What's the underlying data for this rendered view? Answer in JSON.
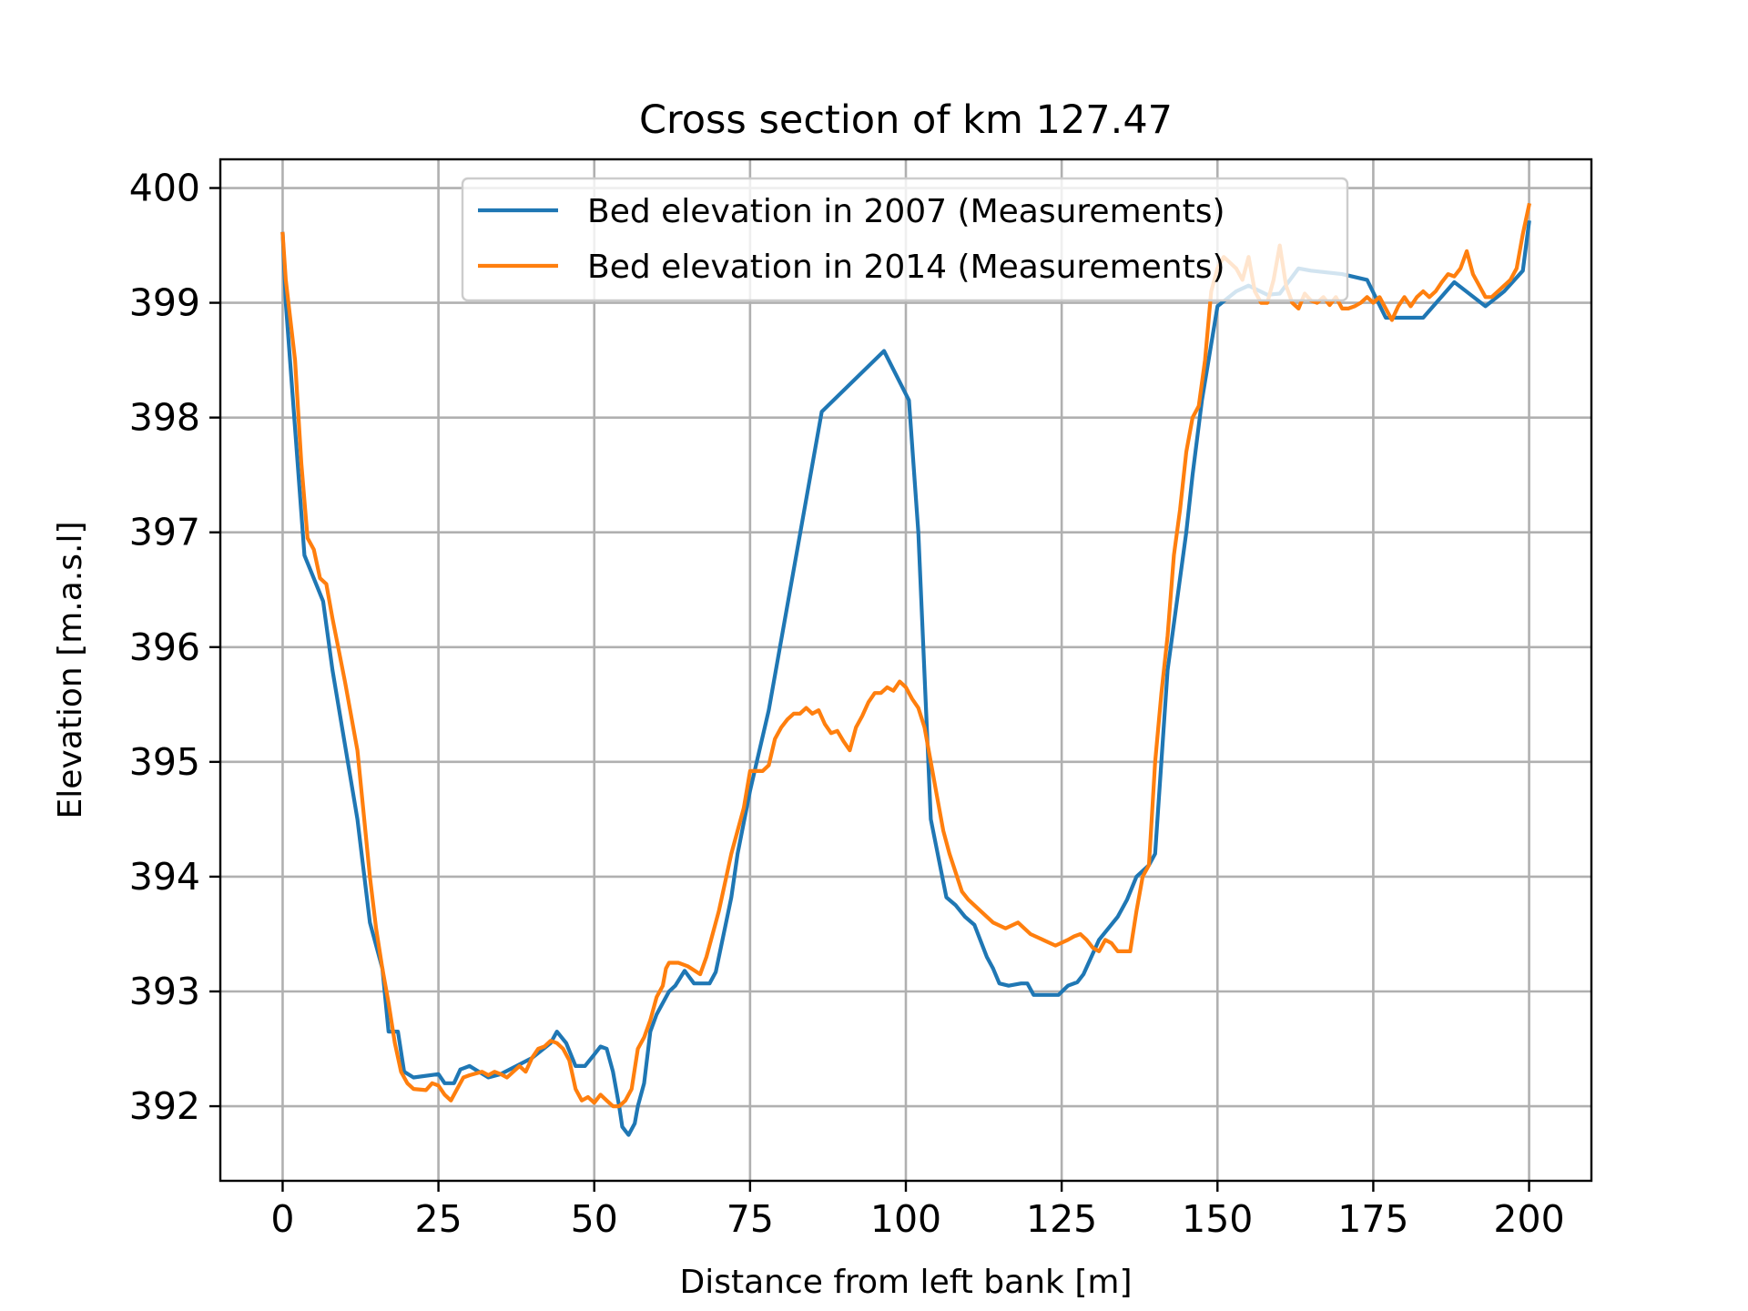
{
  "chart_data": {
    "type": "line",
    "title": "Cross section of km 127.47",
    "xlabel": "Distance from left bank [m]",
    "ylabel": "Elevation [m.a.s.l]",
    "xlim": [
      -10,
      210
    ],
    "ylim": [
      391.35,
      400.25
    ],
    "xticks": [
      0,
      25,
      50,
      75,
      100,
      125,
      150,
      175,
      200
    ],
    "yticks": [
      392,
      393,
      394,
      395,
      396,
      397,
      398,
      399,
      400
    ],
    "grid": true,
    "legend_position": "top-center",
    "series": [
      {
        "name": "Bed elevation in 2007 (Measurements)",
        "color": "#1f77b4",
        "points": [
          [
            0,
            399.6
          ],
          [
            0.5,
            399.0
          ],
          [
            3.5,
            396.8
          ],
          [
            6.5,
            396.4
          ],
          [
            8,
            395.8
          ],
          [
            12,
            394.5
          ],
          [
            14,
            393.6
          ],
          [
            16,
            393.2
          ],
          [
            17,
            392.65
          ],
          [
            18.5,
            392.65
          ],
          [
            19.5,
            392.3
          ],
          [
            21,
            392.25
          ],
          [
            25,
            392.28
          ],
          [
            26,
            392.2
          ],
          [
            27.5,
            392.2
          ],
          [
            28.5,
            392.32
          ],
          [
            30,
            392.35
          ],
          [
            33,
            392.25
          ],
          [
            35,
            392.28
          ],
          [
            40,
            392.42
          ],
          [
            43,
            392.55
          ],
          [
            44,
            392.65
          ],
          [
            45.5,
            392.55
          ],
          [
            47,
            392.35
          ],
          [
            48.5,
            392.35
          ],
          [
            50,
            392.45
          ],
          [
            51,
            392.52
          ],
          [
            52,
            392.5
          ],
          [
            53,
            392.3
          ],
          [
            54,
            392.0
          ],
          [
            54.5,
            391.82
          ],
          [
            55.5,
            391.75
          ],
          [
            56.5,
            391.85
          ],
          [
            57,
            392.0
          ],
          [
            58,
            392.2
          ],
          [
            59,
            392.65
          ],
          [
            60,
            392.8
          ],
          [
            62,
            393.0
          ],
          [
            63,
            393.05
          ],
          [
            64.5,
            393.18
          ],
          [
            66,
            393.07
          ],
          [
            68.5,
            393.07
          ],
          [
            69.5,
            393.17
          ],
          [
            72,
            393.82
          ],
          [
            73,
            394.2
          ],
          [
            75,
            394.75
          ],
          [
            78,
            395.45
          ],
          [
            86.5,
            398.05
          ],
          [
            96.5,
            398.58
          ],
          [
            100.5,
            398.15
          ],
          [
            102,
            397.0
          ],
          [
            104,
            394.5
          ],
          [
            106.5,
            393.82
          ],
          [
            108,
            393.75
          ],
          [
            109.5,
            393.65
          ],
          [
            111,
            393.58
          ],
          [
            113,
            393.3
          ],
          [
            114,
            393.2
          ],
          [
            115,
            393.07
          ],
          [
            116.5,
            393.05
          ],
          [
            118.5,
            393.07
          ],
          [
            119.5,
            393.07
          ],
          [
            120.5,
            392.97
          ],
          [
            122,
            392.97
          ],
          [
            124.5,
            392.97
          ],
          [
            126,
            393.05
          ],
          [
            127.5,
            393.08
          ],
          [
            128.5,
            393.15
          ],
          [
            131,
            393.45
          ],
          [
            134,
            393.65
          ],
          [
            135.5,
            393.8
          ],
          [
            137,
            394.0
          ],
          [
            139,
            394.1
          ],
          [
            140,
            394.2
          ],
          [
            140.5,
            394.6
          ],
          [
            142,
            395.8
          ],
          [
            145,
            397.0
          ],
          [
            146,
            397.5
          ],
          [
            147.5,
            398.15
          ],
          [
            150,
            398.97
          ],
          [
            153,
            399.1
          ],
          [
            155,
            399.15
          ],
          [
            158,
            399.07
          ],
          [
            160,
            399.08
          ],
          [
            163,
            399.3
          ],
          [
            165,
            399.28
          ],
          [
            170,
            399.25
          ],
          [
            174,
            399.2
          ],
          [
            177,
            398.87
          ],
          [
            183,
            398.87
          ],
          [
            188,
            399.18
          ],
          [
            193,
            398.97
          ],
          [
            196,
            399.1
          ],
          [
            199,
            399.28
          ],
          [
            200,
            399.7
          ]
        ]
      },
      {
        "name": "Bed elevation in 2014 (Measurements)",
        "color": "#ff7f0e",
        "points": [
          [
            0,
            399.6
          ],
          [
            0.5,
            399.2
          ],
          [
            2,
            398.5
          ],
          [
            3,
            397.6
          ],
          [
            4,
            396.95
          ],
          [
            5,
            396.85
          ],
          [
            6,
            396.6
          ],
          [
            7,
            396.55
          ],
          [
            8,
            396.25
          ],
          [
            10,
            395.7
          ],
          [
            12,
            395.1
          ],
          [
            14,
            394.0
          ],
          [
            15,
            393.55
          ],
          [
            16,
            393.2
          ],
          [
            17,
            392.9
          ],
          [
            18,
            392.55
          ],
          [
            19,
            392.3
          ],
          [
            20,
            392.2
          ],
          [
            21,
            392.15
          ],
          [
            23,
            392.14
          ],
          [
            24,
            392.2
          ],
          [
            25,
            392.18
          ],
          [
            26,
            392.1
          ],
          [
            27,
            392.05
          ],
          [
            28,
            392.15
          ],
          [
            29,
            392.25
          ],
          [
            30,
            392.27
          ],
          [
            32,
            392.3
          ],
          [
            33,
            392.27
          ],
          [
            34,
            392.3
          ],
          [
            35,
            392.28
          ],
          [
            36,
            392.25
          ],
          [
            38,
            392.35
          ],
          [
            39,
            392.3
          ],
          [
            40,
            392.42
          ],
          [
            41,
            392.5
          ],
          [
            42,
            392.52
          ],
          [
            43,
            392.57
          ],
          [
            44,
            392.55
          ],
          [
            45,
            392.5
          ],
          [
            46,
            392.4
          ],
          [
            47,
            392.15
          ],
          [
            48,
            392.05
          ],
          [
            49,
            392.08
          ],
          [
            50,
            392.03
          ],
          [
            51,
            392.1
          ],
          [
            52,
            392.05
          ],
          [
            53,
            392.0
          ],
          [
            54,
            392.0
          ],
          [
            55,
            392.05
          ],
          [
            56,
            392.15
          ],
          [
            57,
            392.5
          ],
          [
            58,
            392.6
          ],
          [
            59,
            392.75
          ],
          [
            60,
            392.95
          ],
          [
            61,
            393.05
          ],
          [
            61.5,
            393.2
          ],
          [
            62,
            393.25
          ],
          [
            63.5,
            393.25
          ],
          [
            65,
            393.22
          ],
          [
            67,
            393.15
          ],
          [
            68,
            393.3
          ],
          [
            70,
            393.7
          ],
          [
            72,
            394.2
          ],
          [
            74,
            394.6
          ],
          [
            75,
            394.92
          ],
          [
            77,
            394.92
          ],
          [
            78,
            394.97
          ],
          [
            79,
            395.2
          ],
          [
            80,
            395.3
          ],
          [
            81,
            395.37
          ],
          [
            82,
            395.42
          ],
          [
            83,
            395.42
          ],
          [
            84,
            395.47
          ],
          [
            85,
            395.42
          ],
          [
            86,
            395.45
          ],
          [
            87,
            395.33
          ],
          [
            88,
            395.25
          ],
          [
            89,
            395.27
          ],
          [
            90,
            395.18
          ],
          [
            91,
            395.1
          ],
          [
            92,
            395.3
          ],
          [
            93,
            395.4
          ],
          [
            94,
            395.52
          ],
          [
            95,
            395.6
          ],
          [
            96,
            395.6
          ],
          [
            97,
            395.65
          ],
          [
            98,
            395.62
          ],
          [
            99,
            395.7
          ],
          [
            100,
            395.65
          ],
          [
            101,
            395.55
          ],
          [
            102,
            395.47
          ],
          [
            103,
            395.3
          ],
          [
            104,
            395.0
          ],
          [
            105,
            394.7
          ],
          [
            106,
            394.4
          ],
          [
            107,
            394.2
          ],
          [
            109,
            393.87
          ],
          [
            110,
            393.8
          ],
          [
            112,
            393.7
          ],
          [
            114,
            393.6
          ],
          [
            116,
            393.55
          ],
          [
            118,
            393.6
          ],
          [
            120,
            393.5
          ],
          [
            122,
            393.45
          ],
          [
            124,
            393.4
          ],
          [
            126,
            393.45
          ],
          [
            127,
            393.48
          ],
          [
            128,
            393.5
          ],
          [
            129,
            393.45
          ],
          [
            130,
            393.38
          ],
          [
            131,
            393.35
          ],
          [
            132,
            393.45
          ],
          [
            133,
            393.42
          ],
          [
            134,
            393.35
          ],
          [
            136,
            393.35
          ],
          [
            137,
            393.7
          ],
          [
            138,
            394.0
          ],
          [
            139,
            394.1
          ],
          [
            140,
            395.0
          ],
          [
            141,
            395.6
          ],
          [
            142,
            396.1
          ],
          [
            143,
            396.8
          ],
          [
            144,
            397.2
          ],
          [
            145,
            397.7
          ],
          [
            146,
            398.0
          ],
          [
            147,
            398.1
          ],
          [
            148,
            398.5
          ],
          [
            149,
            399.1
          ],
          [
            150,
            399.3
          ],
          [
            151,
            399.4
          ],
          [
            152,
            399.35
          ],
          [
            153,
            399.3
          ],
          [
            154,
            399.2
          ],
          [
            155,
            399.4
          ],
          [
            156,
            399.1
          ],
          [
            157,
            399.0
          ],
          [
            158,
            399.0
          ],
          [
            159,
            399.2
          ],
          [
            160,
            399.5
          ],
          [
            161,
            399.15
          ],
          [
            162,
            399.0
          ],
          [
            163,
            398.95
          ],
          [
            164,
            399.08
          ],
          [
            165,
            399.02
          ],
          [
            166,
            399.0
          ],
          [
            167,
            399.05
          ],
          [
            168,
            398.98
          ],
          [
            169,
            399.05
          ],
          [
            170,
            398.95
          ],
          [
            171,
            398.95
          ],
          [
            172,
            398.97
          ],
          [
            173,
            399.0
          ],
          [
            174,
            399.05
          ],
          [
            175,
            399.0
          ],
          [
            176,
            399.05
          ],
          [
            177,
            398.95
          ],
          [
            178,
            398.85
          ],
          [
            179,
            398.97
          ],
          [
            180,
            399.05
          ],
          [
            181,
            398.97
          ],
          [
            182,
            399.05
          ],
          [
            183,
            399.1
          ],
          [
            184,
            399.05
          ],
          [
            185,
            399.1
          ],
          [
            186,
            399.18
          ],
          [
            187,
            399.25
          ],
          [
            188,
            399.23
          ],
          [
            189,
            399.3
          ],
          [
            190,
            399.45
          ],
          [
            191,
            399.25
          ],
          [
            192,
            399.15
          ],
          [
            193,
            399.05
          ],
          [
            194,
            399.05
          ],
          [
            195,
            399.1
          ],
          [
            196,
            399.15
          ],
          [
            197,
            399.2
          ],
          [
            198,
            399.3
          ],
          [
            199,
            399.6
          ],
          [
            200,
            399.85
          ]
        ]
      }
    ]
  }
}
